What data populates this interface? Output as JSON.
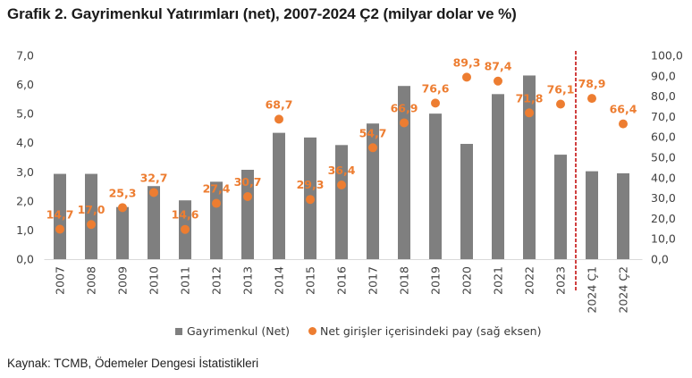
{
  "title": "Grafik 2. Gayrimenkul Yatırımları (net), 2007-2024 Ç2 (milyar dolar ve %)",
  "source": "Kaynak: TCMB, Ödemeler Dengesi İstatistikleri",
  "legend": {
    "bars_label": "Gayrimenkul (Net)",
    "dots_label": "Net girişler içerisindeki pay (sağ eksen)"
  },
  "colors": {
    "bars": "#7f7f7f",
    "dots": "#ed7d31",
    "divider": "#c00000",
    "axis_text": "#404040",
    "axis_line": "#d9d9d9"
  },
  "chart_data": {
    "type": "bar",
    "title": "Grafik 2. Gayrimenkul Yatırımları (net), 2007-2024 Ç2 (milyar dolar ve %)",
    "xlabel": "",
    "ylabel": "milyar dolar",
    "y2label": "%",
    "categories": [
      "2007",
      "2008",
      "2009",
      "2010",
      "2011",
      "2012",
      "2013",
      "2014",
      "2015",
      "2016",
      "2017",
      "2018",
      "2019",
      "2020",
      "2021",
      "2022",
      "2023",
      "2024 Ç1",
      "2024 Ç2"
    ],
    "series": [
      {
        "name": "Gayrimenkul (Net)",
        "type": "bar",
        "axis": "left",
        "values": [
          2.93,
          2.93,
          1.79,
          2.51,
          2.02,
          2.66,
          3.07,
          4.34,
          4.18,
          3.92,
          4.66,
          5.95,
          5.0,
          3.96,
          5.67,
          6.31,
          3.59,
          3.02,
          2.95
        ]
      },
      {
        "name": "Net girişler içerisindeki pay (sağ eksen)",
        "type": "scatter",
        "axis": "right",
        "values": [
          14.7,
          17.0,
          25.3,
          32.7,
          14.6,
          27.4,
          30.7,
          68.7,
          29.3,
          36.4,
          54.7,
          66.9,
          76.6,
          89.3,
          87.4,
          71.8,
          76.1,
          78.9,
          66.4
        ],
        "labels": [
          "14,7",
          "17,0",
          "25,3",
          "32,7",
          "14,6",
          "27,4",
          "30,7",
          "68,7",
          "29,3",
          "36,4",
          "54,7",
          "66,9",
          "76,6",
          "89,3",
          "87,4",
          "71,8",
          "76,1",
          "78,9",
          "66,4"
        ]
      }
    ],
    "ylim": [
      0,
      7
    ],
    "y2lim": [
      0,
      100
    ],
    "yticks": [
      "0,0",
      "1,0",
      "2,0",
      "3,0",
      "4,0",
      "5,0",
      "6,0",
      "7,0"
    ],
    "y2ticks": [
      "0,0",
      "10,0",
      "20,0",
      "30,0",
      "40,0",
      "50,0",
      "60,0",
      "70,0",
      "80,0",
      "90,0",
      "100,0"
    ],
    "grid": false,
    "legend_position": "bottom",
    "annotations": [
      "dashed vertical divider between 2023 and 2024 Ç1"
    ]
  }
}
